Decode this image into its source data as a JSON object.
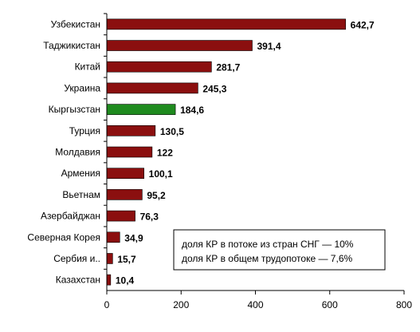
{
  "chart_data": {
    "type": "bar",
    "orientation": "horizontal",
    "categories": [
      "Узбекистан",
      "Таджикистан",
      "Китай",
      "Украина",
      "Кыргызстан",
      "Турция",
      "Молдавия",
      "Армения",
      "Вьетнам",
      "Азербайджан",
      "Северная Корея",
      "Сербия и..",
      "Казахстан"
    ],
    "values": [
      642.7,
      391.4,
      281.7,
      245.3,
      184.6,
      130.5,
      122,
      100.1,
      95.2,
      76.3,
      34.9,
      15.7,
      10.4
    ],
    "value_labels": [
      "642,7",
      "391,4",
      "281,7",
      "245,3",
      "184,6",
      "130,5",
      "122",
      "100,1",
      "95,2",
      "76,3",
      "34,9",
      "15,7",
      "10,4"
    ],
    "highlight_category": "Кыргызстан",
    "xlim": [
      0,
      800
    ],
    "x_ticks": [
      0,
      200,
      400,
      600,
      800
    ],
    "grid": false,
    "title": "",
    "xlabel": "",
    "ylabel": "",
    "colors": {
      "bar": "#8b0f0f",
      "highlight": "#1f8b1f",
      "edge": "#000000"
    },
    "annotation": {
      "lines": [
        "доля КР в потоке из стран СНГ — 10%",
        "доля КР в общем трудопотоке — 7,6%"
      ],
      "placement": "bottom-right"
    }
  }
}
